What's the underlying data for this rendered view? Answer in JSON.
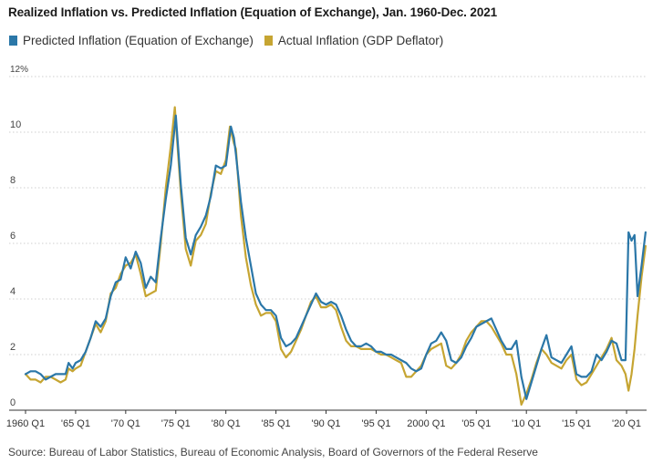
{
  "title": "Realized Inflation vs. Predicted Inflation (Equation of Exchange), Jan. 1960-Dec. 2021",
  "source": "Source: Bureau of Labor Statistics, Bureau of Economic Analysis, Board of Governors of the Federal Reserve",
  "chart_data": {
    "type": "line",
    "title": "Realized Inflation vs. Predicted Inflation (Equation of Exchange), Jan. 1960-Dec. 2021",
    "xlabel": "",
    "ylabel": "",
    "xlim": [
      1960,
      2022
    ],
    "ylim": [
      0,
      12
    ],
    "grid": true,
    "legend": "top-left",
    "y_ticks": [
      {
        "value": 0,
        "label": "0"
      },
      {
        "value": 2,
        "label": "2"
      },
      {
        "value": 4,
        "label": "4"
      },
      {
        "value": 6,
        "label": "6"
      },
      {
        "value": 8,
        "label": "8"
      },
      {
        "value": 10,
        "label": "10"
      },
      {
        "value": 12,
        "label": "12%"
      }
    ],
    "x_ticks": [
      {
        "value": 1960,
        "label": "1960 Q1"
      },
      {
        "value": 1965,
        "label": "'65 Q1"
      },
      {
        "value": 1970,
        "label": "'70 Q1"
      },
      {
        "value": 1975,
        "label": "'75 Q1"
      },
      {
        "value": 1980,
        "label": "'80 Q1"
      },
      {
        "value": 1985,
        "label": "'85 Q1"
      },
      {
        "value": 1990,
        "label": "'90 Q1"
      },
      {
        "value": 1995,
        "label": "'95 Q1"
      },
      {
        "value": 2000,
        "label": "2000 Q1"
      },
      {
        "value": 2005,
        "label": "'05 Q1"
      },
      {
        "value": 2010,
        "label": "'10 Q1"
      },
      {
        "value": 2015,
        "label": "'15 Q1"
      },
      {
        "value": 2020,
        "label": "'20 Q1"
      }
    ],
    "series": [
      {
        "name": "Predicted Inflation (Equation of Exchange)",
        "color": "#2b77a8",
        "points": [
          [
            1960.0,
            1.3
          ],
          [
            1960.5,
            1.4
          ],
          [
            1961.0,
            1.4
          ],
          [
            1961.5,
            1.3
          ],
          [
            1962.0,
            1.1
          ],
          [
            1962.5,
            1.2
          ],
          [
            1963.0,
            1.3
          ],
          [
            1963.5,
            1.3
          ],
          [
            1964.0,
            1.3
          ],
          [
            1964.3,
            1.7
          ],
          [
            1964.7,
            1.5
          ],
          [
            1965.0,
            1.7
          ],
          [
            1965.5,
            1.8
          ],
          [
            1966.0,
            2.1
          ],
          [
            1966.5,
            2.6
          ],
          [
            1967.0,
            3.2
          ],
          [
            1967.5,
            3.0
          ],
          [
            1968.0,
            3.3
          ],
          [
            1968.5,
            4.1
          ],
          [
            1969.0,
            4.6
          ],
          [
            1969.5,
            4.7
          ],
          [
            1970.0,
            5.5
          ],
          [
            1970.5,
            5.1
          ],
          [
            1971.0,
            5.7
          ],
          [
            1971.5,
            5.3
          ],
          [
            1972.0,
            4.4
          ],
          [
            1972.5,
            4.8
          ],
          [
            1973.0,
            4.6
          ],
          [
            1973.5,
            6.2
          ],
          [
            1974.0,
            7.6
          ],
          [
            1974.5,
            8.8
          ],
          [
            1975.0,
            10.6
          ],
          [
            1975.5,
            8.1
          ],
          [
            1976.0,
            6.2
          ],
          [
            1976.5,
            5.6
          ],
          [
            1977.0,
            6.3
          ],
          [
            1977.5,
            6.6
          ],
          [
            1978.0,
            7.0
          ],
          [
            1978.5,
            7.7
          ],
          [
            1979.0,
            8.8
          ],
          [
            1979.5,
            8.7
          ],
          [
            1980.0,
            8.8
          ],
          [
            1980.5,
            10.2
          ],
          [
            1980.8,
            9.8
          ],
          [
            1981.0,
            9.2
          ],
          [
            1981.5,
            7.5
          ],
          [
            1982.0,
            6.2
          ],
          [
            1982.5,
            5.2
          ],
          [
            1983.0,
            4.2
          ],
          [
            1983.5,
            3.8
          ],
          [
            1984.0,
            3.6
          ],
          [
            1984.5,
            3.6
          ],
          [
            1985.0,
            3.4
          ],
          [
            1985.5,
            2.6
          ],
          [
            1986.0,
            2.3
          ],
          [
            1986.5,
            2.4
          ],
          [
            1987.0,
            2.6
          ],
          [
            1987.5,
            3.0
          ],
          [
            1988.0,
            3.4
          ],
          [
            1988.5,
            3.8
          ],
          [
            1989.0,
            4.2
          ],
          [
            1989.5,
            3.9
          ],
          [
            1990.0,
            3.8
          ],
          [
            1990.5,
            3.9
          ],
          [
            1991.0,
            3.8
          ],
          [
            1991.5,
            3.4
          ],
          [
            1992.0,
            2.9
          ],
          [
            1992.5,
            2.5
          ],
          [
            1993.0,
            2.3
          ],
          [
            1993.5,
            2.3
          ],
          [
            1994.0,
            2.4
          ],
          [
            1994.5,
            2.3
          ],
          [
            1995.0,
            2.1
          ],
          [
            1995.5,
            2.1
          ],
          [
            1996.0,
            2.0
          ],
          [
            1996.5,
            2.0
          ],
          [
            1997.0,
            1.9
          ],
          [
            1997.5,
            1.8
          ],
          [
            1998.0,
            1.7
          ],
          [
            1998.5,
            1.5
          ],
          [
            1999.0,
            1.4
          ],
          [
            1999.5,
            1.5
          ],
          [
            2000.0,
            2.0
          ],
          [
            2000.5,
            2.4
          ],
          [
            2001.0,
            2.5
          ],
          [
            2001.5,
            2.8
          ],
          [
            2002.0,
            2.5
          ],
          [
            2002.5,
            1.8
          ],
          [
            2003.0,
            1.7
          ],
          [
            2003.5,
            1.9
          ],
          [
            2004.0,
            2.3
          ],
          [
            2004.5,
            2.6
          ],
          [
            2005.0,
            3.0
          ],
          [
            2005.5,
            3.1
          ],
          [
            2006.0,
            3.2
          ],
          [
            2006.5,
            3.3
          ],
          [
            2007.0,
            2.9
          ],
          [
            2007.5,
            2.5
          ],
          [
            2008.0,
            2.2
          ],
          [
            2008.5,
            2.2
          ],
          [
            2009.0,
            2.5
          ],
          [
            2009.5,
            1.2
          ],
          [
            2010.0,
            0.4
          ],
          [
            2010.5,
            1.0
          ],
          [
            2011.0,
            1.6
          ],
          [
            2011.5,
            2.2
          ],
          [
            2012.0,
            2.7
          ],
          [
            2012.5,
            1.9
          ],
          [
            2013.0,
            1.8
          ],
          [
            2013.5,
            1.7
          ],
          [
            2014.0,
            2.0
          ],
          [
            2014.5,
            2.3
          ],
          [
            2015.0,
            1.3
          ],
          [
            2015.5,
            1.2
          ],
          [
            2016.0,
            1.2
          ],
          [
            2016.5,
            1.4
          ],
          [
            2017.0,
            2.0
          ],
          [
            2017.5,
            1.8
          ],
          [
            2018.0,
            2.1
          ],
          [
            2018.5,
            2.5
          ],
          [
            2019.0,
            2.4
          ],
          [
            2019.5,
            1.8
          ],
          [
            2019.9,
            1.8
          ],
          [
            2020.2,
            6.4
          ],
          [
            2020.5,
            6.1
          ],
          [
            2020.8,
            6.3
          ],
          [
            2021.1,
            4.1
          ],
          [
            2021.5,
            5.2
          ],
          [
            2021.9,
            6.4
          ]
        ]
      },
      {
        "name": "Actual Inflation (GDP Deflator)",
        "color": "#c6a532",
        "points": [
          [
            1960.0,
            1.3
          ],
          [
            1960.5,
            1.1
          ],
          [
            1961.0,
            1.1
          ],
          [
            1961.5,
            1.0
          ],
          [
            1962.0,
            1.2
          ],
          [
            1962.5,
            1.2
          ],
          [
            1963.0,
            1.1
          ],
          [
            1963.5,
            1.0
          ],
          [
            1964.0,
            1.1
          ],
          [
            1964.3,
            1.5
          ],
          [
            1964.7,
            1.4
          ],
          [
            1965.0,
            1.5
          ],
          [
            1965.5,
            1.6
          ],
          [
            1966.0,
            2.1
          ],
          [
            1966.5,
            2.6
          ],
          [
            1967.0,
            3.1
          ],
          [
            1967.5,
            2.8
          ],
          [
            1968.0,
            3.2
          ],
          [
            1968.5,
            4.2
          ],
          [
            1969.0,
            4.4
          ],
          [
            1969.5,
            4.9
          ],
          [
            1970.0,
            5.2
          ],
          [
            1970.5,
            5.3
          ],
          [
            1971.0,
            5.6
          ],
          [
            1971.5,
            4.9
          ],
          [
            1972.0,
            4.1
          ],
          [
            1972.5,
            4.2
          ],
          [
            1973.0,
            4.3
          ],
          [
            1973.5,
            6.0
          ],
          [
            1974.0,
            8.0
          ],
          [
            1974.5,
            9.5
          ],
          [
            1974.9,
            10.9
          ],
          [
            1975.5,
            7.8
          ],
          [
            1976.0,
            5.8
          ],
          [
            1976.5,
            5.2
          ],
          [
            1977.0,
            6.1
          ],
          [
            1977.5,
            6.3
          ],
          [
            1978.0,
            6.7
          ],
          [
            1978.5,
            7.8
          ],
          [
            1979.0,
            8.6
          ],
          [
            1979.5,
            8.5
          ],
          [
            1980.0,
            9.0
          ],
          [
            1980.4,
            10.2
          ],
          [
            1980.8,
            9.6
          ],
          [
            1981.0,
            9.4
          ],
          [
            1981.5,
            7.0
          ],
          [
            1982.0,
            5.5
          ],
          [
            1982.5,
            4.5
          ],
          [
            1983.0,
            3.8
          ],
          [
            1983.5,
            3.4
          ],
          [
            1984.0,
            3.5
          ],
          [
            1984.5,
            3.5
          ],
          [
            1985.0,
            3.2
          ],
          [
            1985.5,
            2.2
          ],
          [
            1986.0,
            1.9
          ],
          [
            1986.5,
            2.1
          ],
          [
            1987.0,
            2.5
          ],
          [
            1987.5,
            2.9
          ],
          [
            1988.0,
            3.4
          ],
          [
            1988.5,
            3.9
          ],
          [
            1989.0,
            4.1
          ],
          [
            1989.5,
            3.7
          ],
          [
            1990.0,
            3.7
          ],
          [
            1990.5,
            3.8
          ],
          [
            1991.0,
            3.6
          ],
          [
            1991.5,
            3.0
          ],
          [
            1992.0,
            2.5
          ],
          [
            1992.5,
            2.3
          ],
          [
            1993.0,
            2.3
          ],
          [
            1993.5,
            2.2
          ],
          [
            1994.0,
            2.2
          ],
          [
            1994.5,
            2.2
          ],
          [
            1995.0,
            2.1
          ],
          [
            1995.5,
            2.0
          ],
          [
            1996.0,
            2.0
          ],
          [
            1996.5,
            1.9
          ],
          [
            1997.0,
            1.8
          ],
          [
            1997.5,
            1.7
          ],
          [
            1998.0,
            1.2
          ],
          [
            1998.5,
            1.2
          ],
          [
            1999.0,
            1.4
          ],
          [
            1999.5,
            1.6
          ],
          [
            2000.0,
            2.0
          ],
          [
            2000.5,
            2.2
          ],
          [
            2001.0,
            2.3
          ],
          [
            2001.5,
            2.4
          ],
          [
            2002.0,
            1.6
          ],
          [
            2002.5,
            1.5
          ],
          [
            2003.0,
            1.7
          ],
          [
            2003.5,
            2.0
          ],
          [
            2004.0,
            2.5
          ],
          [
            2004.5,
            2.8
          ],
          [
            2005.0,
            3.0
          ],
          [
            2005.5,
            3.2
          ],
          [
            2006.0,
            3.2
          ],
          [
            2006.5,
            3.0
          ],
          [
            2007.0,
            2.7
          ],
          [
            2007.5,
            2.4
          ],
          [
            2008.0,
            2.0
          ],
          [
            2008.5,
            2.0
          ],
          [
            2009.0,
            1.3
          ],
          [
            2009.5,
            0.2
          ],
          [
            2010.0,
            0.6
          ],
          [
            2010.5,
            1.1
          ],
          [
            2011.0,
            1.7
          ],
          [
            2011.5,
            2.2
          ],
          [
            2012.0,
            2.0
          ],
          [
            2012.5,
            1.7
          ],
          [
            2013.0,
            1.6
          ],
          [
            2013.5,
            1.5
          ],
          [
            2014.0,
            1.8
          ],
          [
            2014.5,
            2.0
          ],
          [
            2015.0,
            1.1
          ],
          [
            2015.5,
            0.9
          ],
          [
            2016.0,
            1.0
          ],
          [
            2016.5,
            1.3
          ],
          [
            2017.0,
            1.6
          ],
          [
            2017.5,
            1.9
          ],
          [
            2018.0,
            2.2
          ],
          [
            2018.5,
            2.6
          ],
          [
            2019.0,
            1.8
          ],
          [
            2019.5,
            1.6
          ],
          [
            2019.9,
            1.3
          ],
          [
            2020.2,
            0.7
          ],
          [
            2020.5,
            1.3
          ],
          [
            2020.8,
            2.2
          ],
          [
            2021.1,
            3.4
          ],
          [
            2021.5,
            4.8
          ],
          [
            2021.9,
            5.9
          ]
        ]
      }
    ]
  }
}
